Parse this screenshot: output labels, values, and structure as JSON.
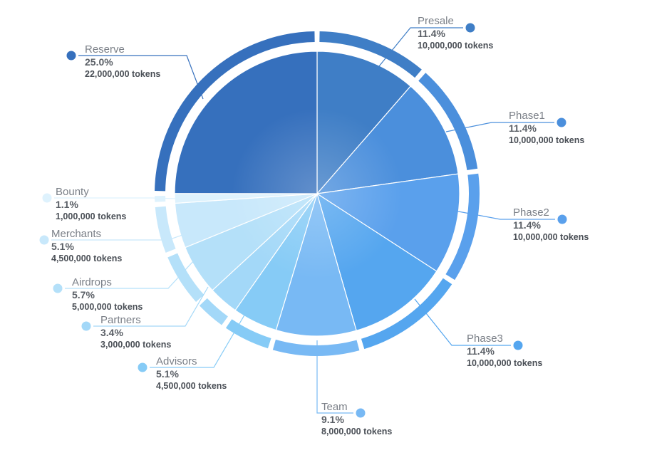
{
  "chart_data": {
    "type": "pie",
    "slices": [
      {
        "name": "Presale",
        "percent": "11.4%",
        "tokens": "10,000,000 tokens",
        "value": 11.4,
        "color": "#3f7ec6"
      },
      {
        "name": "Phase1",
        "percent": "11.4%",
        "tokens": "10,000,000 tokens",
        "value": 11.4,
        "color": "#4b8fdc"
      },
      {
        "name": "Phase2",
        "percent": "11.4%",
        "tokens": "10,000,000 tokens",
        "value": 11.4,
        "color": "#5aa0ec"
      },
      {
        "name": "Phase3",
        "percent": "11.4%",
        "tokens": "10,000,000 tokens",
        "value": 11.4,
        "color": "#55a6ef"
      },
      {
        "name": "Team",
        "percent": "9.1%",
        "tokens": "8,000,000 tokens",
        "value": 9.1,
        "color": "#78b9f4"
      },
      {
        "name": "Advisors",
        "percent": "5.1%",
        "tokens": "4,500,000 tokens",
        "value": 5.1,
        "color": "#86cbf6"
      },
      {
        "name": "Partners",
        "percent": "3.4%",
        "tokens": "3,000,000 tokens",
        "value": 3.4,
        "color": "#a3d8f8"
      },
      {
        "name": "Airdrops",
        "percent": "5.7%",
        "tokens": "5,000,000 tokens",
        "value": 5.7,
        "color": "#b4e0f9"
      },
      {
        "name": "Merchants",
        "percent": "5.1%",
        "tokens": "4,500,000 tokens",
        "value": 5.1,
        "color": "#c8e8fb"
      },
      {
        "name": "Bounty",
        "percent": "1.1%",
        "tokens": "1,000,000 tokens",
        "value": 1.1,
        "color": "#def2fd"
      },
      {
        "name": "Reserve",
        "percent": "25.0%",
        "tokens": "22,000,000 tokens",
        "value": 25.0,
        "color": "#3670bd"
      }
    ],
    "colors": {
      "label_name": "#7a7f87",
      "label_percent": "#5a5f66",
      "label_tokens": "#4a4f56"
    }
  }
}
